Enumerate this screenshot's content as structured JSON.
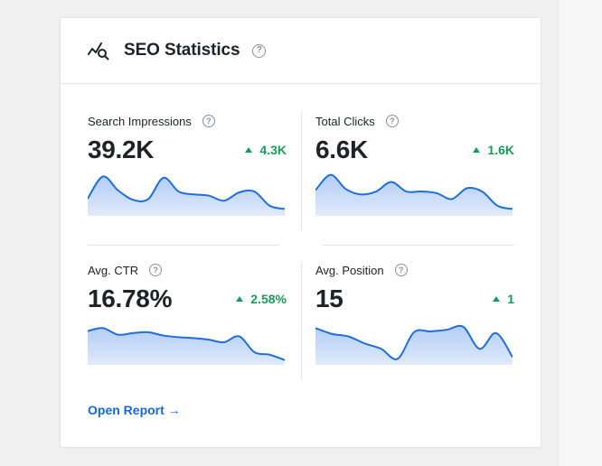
{
  "card": {
    "title": "SEO Statistics",
    "header_icon": "trend-search-icon",
    "help_glyph": "?",
    "link_label": "Open Report →"
  },
  "metrics": [
    {
      "label": "Search Impressions",
      "value": "39.2K",
      "change": "4.3K",
      "trend": [
        0.35,
        0.88,
        0.55,
        0.32,
        0.34,
        0.85,
        0.52,
        0.45,
        0.42,
        0.3,
        0.5,
        0.52,
        0.18,
        0.1
      ]
    },
    {
      "label": "Total Clicks",
      "value": "6.6K",
      "change": "1.6K",
      "trend": [
        0.55,
        0.92,
        0.58,
        0.45,
        0.52,
        0.75,
        0.52,
        0.52,
        0.48,
        0.34,
        0.6,
        0.52,
        0.18,
        0.1
      ]
    },
    {
      "label": "Avg. CTR",
      "value": "16.78%",
      "change": "2.58%",
      "trend": [
        0.75,
        0.82,
        0.66,
        0.7,
        0.72,
        0.64,
        0.6,
        0.58,
        0.54,
        0.48,
        0.62,
        0.24,
        0.18,
        0.05
      ]
    },
    {
      "label": "Avg. Position",
      "value": "15",
      "change": "1",
      "trend": [
        0.82,
        0.68,
        0.62,
        0.45,
        0.32,
        0.08,
        0.72,
        0.74,
        0.78,
        0.85,
        0.32,
        0.7,
        0.12
      ]
    }
  ],
  "colors": {
    "line": "#1f6fdc",
    "positive": "#1a9a5a",
    "link": "#1667d9"
  }
}
